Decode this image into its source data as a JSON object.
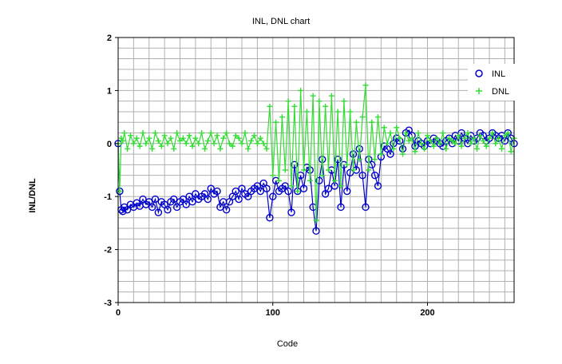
{
  "chart_data": {
    "type": "line",
    "title": "INL, DNL chart",
    "xlabel": "Code",
    "ylabel": "INL/DNL",
    "xlim": [
      0,
      256
    ],
    "ylim": [
      -3,
      2
    ],
    "xticks": [
      0,
      100,
      200
    ],
    "yticks": [
      -3,
      -2,
      -1,
      0,
      1,
      2
    ],
    "grid": true,
    "legend": "top-right",
    "series": [
      {
        "name": "INL",
        "marker": "circle",
        "color": "#0000cc",
        "x": [
          0,
          1,
          2,
          3,
          4,
          6,
          8,
          10,
          12,
          14,
          16,
          18,
          20,
          22,
          24,
          26,
          28,
          30,
          32,
          34,
          36,
          38,
          40,
          42,
          44,
          46,
          48,
          50,
          52,
          54,
          56,
          58,
          60,
          62,
          64,
          66,
          68,
          70,
          72,
          74,
          76,
          78,
          80,
          82,
          84,
          86,
          88,
          90,
          92,
          94,
          96,
          98,
          100,
          102,
          104,
          106,
          108,
          110,
          112,
          114,
          116,
          118,
          120,
          122,
          124,
          126,
          128,
          130,
          132,
          134,
          136,
          138,
          140,
          142,
          144,
          146,
          148,
          150,
          152,
          154,
          156,
          158,
          160,
          162,
          164,
          166,
          168,
          170,
          172,
          174,
          176,
          178,
          180,
          182,
          184,
          186,
          188,
          190,
          192,
          194,
          196,
          198,
          200,
          202,
          204,
          206,
          208,
          210,
          212,
          214,
          216,
          218,
          220,
          222,
          224,
          226,
          228,
          230,
          232,
          234,
          236,
          238,
          240,
          242,
          244,
          246,
          248,
          250,
          252,
          254,
          256
        ],
        "y": [
          0,
          -0.9,
          -1.25,
          -1.28,
          -1.2,
          -1.25,
          -1.15,
          -1.2,
          -1.12,
          -1.18,
          -1.05,
          -1.15,
          -1.1,
          -1.2,
          -1.05,
          -1.3,
          -1.1,
          -1.15,
          -1.25,
          -1.1,
          -1.05,
          -1.2,
          -1.1,
          -1.05,
          -1.15,
          -1.0,
          -1.1,
          -0.95,
          -1.05,
          -1.0,
          -0.95,
          -1.05,
          -0.85,
          -0.95,
          -0.9,
          -1.2,
          -1.1,
          -1.25,
          -1.1,
          -1.0,
          -0.9,
          -1.05,
          -0.85,
          -0.95,
          -1.0,
          -0.9,
          -0.85,
          -0.8,
          -0.9,
          -0.75,
          -0.85,
          -1.4,
          -1.0,
          -0.7,
          -0.9,
          -0.85,
          -0.8,
          -0.9,
          -1.3,
          -0.4,
          -0.9,
          -0.6,
          -0.85,
          -0.45,
          -0.5,
          -1.2,
          -1.65,
          -0.7,
          -0.3,
          -0.95,
          -0.85,
          -0.5,
          -0.8,
          -0.3,
          -1.2,
          -0.4,
          -0.9,
          -0.55,
          -0.2,
          -0.5,
          -0.1,
          -0.6,
          -1.2,
          -0.3,
          -0.4,
          -0.6,
          -0.8,
          -0.25,
          -0.05,
          -0.1,
          -0.2,
          0.0,
          0.1,
          0.05,
          -0.1,
          0.2,
          0.25,
          0.15,
          -0.05,
          0.05,
          0.0,
          -0.05,
          0.05,
          0.0,
          0.1,
          0.05,
          0.0,
          -0.05,
          0.05,
          0.1,
          0.0,
          0.15,
          0.05,
          0.2,
          0.1,
          0.0,
          0.15,
          0.05,
          0.1,
          0.2,
          0.15,
          0.05,
          0.1,
          0.2,
          0.15,
          0.1,
          0.15,
          0.05,
          0.2,
          0.1,
          0.0
        ]
      },
      {
        "name": "DNL",
        "marker": "plus",
        "color": "#33dd33",
        "x": [
          0,
          1,
          2,
          3,
          4,
          6,
          8,
          10,
          12,
          14,
          16,
          18,
          20,
          22,
          24,
          26,
          28,
          30,
          32,
          34,
          36,
          38,
          40,
          42,
          44,
          46,
          48,
          50,
          52,
          54,
          56,
          58,
          60,
          62,
          64,
          66,
          68,
          70,
          72,
          74,
          76,
          78,
          80,
          82,
          84,
          86,
          88,
          90,
          92,
          94,
          96,
          98,
          100,
          102,
          104,
          106,
          108,
          110,
          112,
          114,
          116,
          118,
          120,
          122,
          124,
          126,
          128,
          130,
          132,
          134,
          136,
          138,
          140,
          142,
          144,
          146,
          148,
          150,
          152,
          154,
          156,
          158,
          160,
          162,
          164,
          166,
          168,
          170,
          172,
          174,
          176,
          178,
          180,
          182,
          184,
          186,
          188,
          190,
          192,
          194,
          196,
          198,
          200,
          202,
          204,
          206,
          208,
          210,
          212,
          214,
          216,
          218,
          220,
          222,
          224,
          226,
          228,
          230,
          232,
          234,
          236,
          238,
          240,
          242,
          244,
          246,
          248,
          250,
          252,
          254,
          256
        ],
        "y": [
          0,
          -0.9,
          0.1,
          0.05,
          0.2,
          -0.1,
          0.15,
          0.0,
          0.1,
          -0.05,
          0.2,
          0.0,
          0.1,
          -0.1,
          0.2,
          0.05,
          -0.05,
          0.15,
          0.0,
          0.1,
          -0.1,
          0.2,
          0.05,
          0.1,
          0.0,
          0.15,
          -0.05,
          0.1,
          0.0,
          0.2,
          -0.1,
          0.05,
          0.2,
          0.0,
          0.15,
          -0.1,
          0.1,
          0.2,
          0.0,
          -0.05,
          0.15,
          0.1,
          0.0,
          0.2,
          -0.1,
          0.05,
          0.15,
          0.0,
          0.1,
          0.0,
          -0.1,
          0.7,
          -0.6,
          0.4,
          -0.7,
          0.5,
          -0.5,
          0.8,
          -0.8,
          0.7,
          -0.9,
          1.0,
          -0.5,
          0.6,
          -0.7,
          0.9,
          -1.45,
          0.8,
          -0.6,
          0.7,
          -0.5,
          0.9,
          -0.7,
          0.6,
          -0.8,
          0.8,
          -0.4,
          0.6,
          -0.5,
          0.4,
          -0.3,
          0.5,
          1.1,
          -0.5,
          0.4,
          -0.3,
          0.5,
          -0.2,
          0.3,
          0.0,
          0.2,
          -0.1,
          0.3,
          0.1,
          -0.2,
          0.2,
          0.05,
          0.1,
          -0.15,
          0.2,
          0.0,
          -0.1,
          0.15,
          0.05,
          -0.05,
          0.1,
          0.0,
          0.2,
          -0.1,
          0.1,
          0.05,
          0.0,
          0.15,
          -0.05,
          0.1,
          0.2,
          0.0,
          0.1,
          -0.1,
          0.15,
          0.05,
          -0.05,
          0.1,
          0.2,
          0.0,
          0.1,
          -0.1,
          0.15,
          0.2,
          -0.15,
          0.1
        ]
      }
    ]
  }
}
